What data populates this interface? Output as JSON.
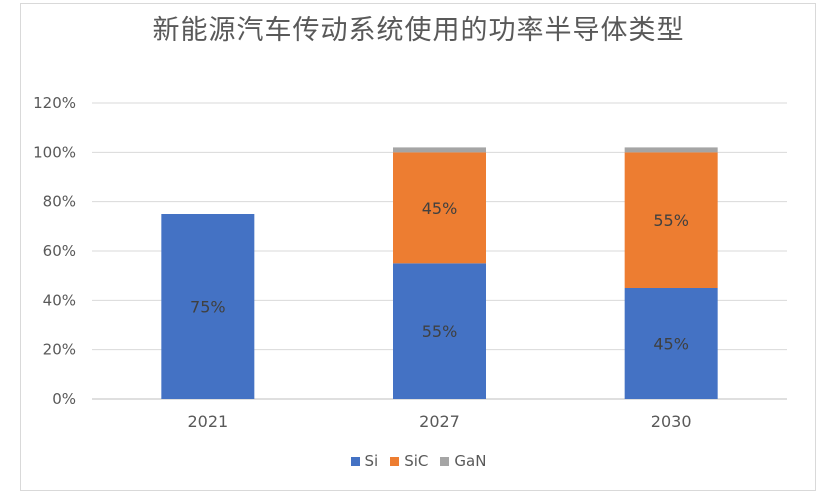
{
  "chart_data": {
    "type": "bar",
    "stacked": true,
    "title": "新能源汽车传动系统使用的功率半导体类型",
    "categories": [
      "2021",
      "2027",
      "2030"
    ],
    "series": [
      {
        "name": "Si",
        "color": "#4472c4",
        "values": [
          75,
          55,
          45
        ],
        "labels": [
          "75%",
          "55%",
          "45%"
        ]
      },
      {
        "name": "SiC",
        "color": "#ed7d31",
        "values": [
          0,
          45,
          55
        ],
        "labels": [
          "",
          "45%",
          "55%"
        ]
      },
      {
        "name": "GaN",
        "color": "#a5a5a5",
        "values": [
          0,
          2,
          2
        ],
        "labels": [
          "",
          "",
          ""
        ]
      }
    ],
    "y_ticks": [
      "0%",
      "20%",
      "40%",
      "60%",
      "80%",
      "100%",
      "120%"
    ],
    "ylim": [
      0,
      120
    ],
    "grid": true,
    "legend_position": "bottom"
  }
}
